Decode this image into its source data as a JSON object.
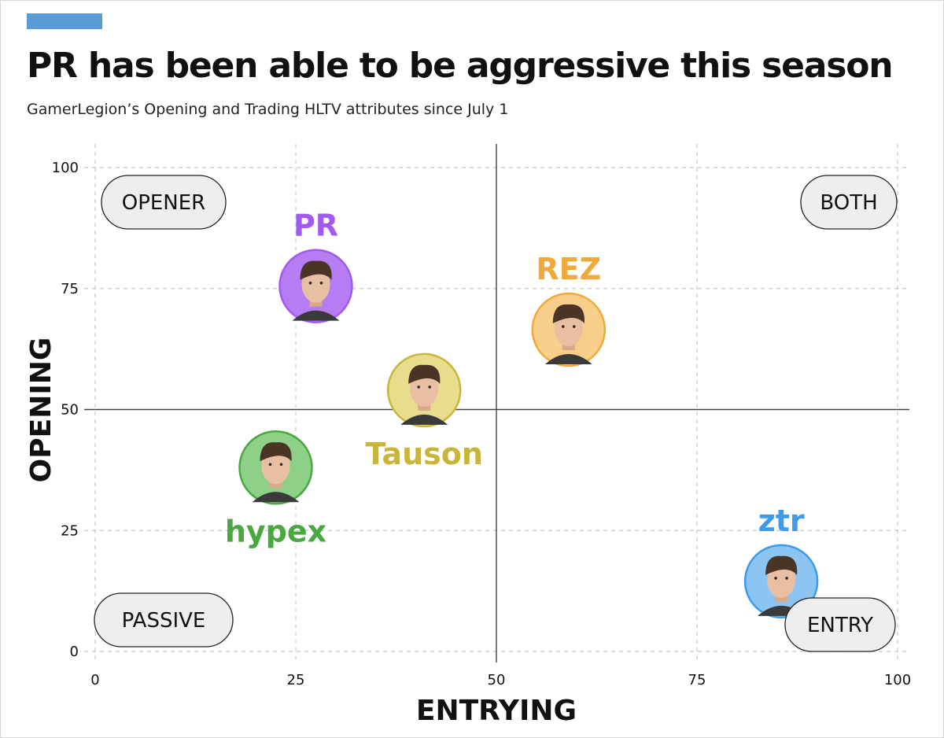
{
  "header": {
    "title": "PR has been able to be aggressive this season",
    "subtitle": "GamerLegion’s Opening and Trading HLTV attributes since July 1"
  },
  "colors": {
    "accent": "#5b9bd5",
    "grid": "#c8c8c8",
    "midline": "#444444"
  },
  "chart_data": {
    "type": "scatter",
    "title": "PR has been able to be aggressive this season",
    "subtitle": "GamerLegion’s Opening and Trading HLTV attributes since July 1",
    "xlabel": "ENTRYING",
    "ylabel": "OPENING",
    "xlim": [
      0,
      100
    ],
    "ylim": [
      0,
      100
    ],
    "xticks": [
      0,
      25,
      50,
      75,
      100
    ],
    "yticks": [
      0,
      25,
      50,
      75,
      100
    ],
    "grid": true,
    "quadrant_labels": [
      {
        "label": "OPENER",
        "position": "top-left"
      },
      {
        "label": "BOTH",
        "position": "top-right"
      },
      {
        "label": "PASSIVE",
        "position": "bottom-left"
      },
      {
        "label": "ENTRY",
        "position": "bottom-right"
      }
    ],
    "points": [
      {
        "name": "PR",
        "x": 27.5,
        "y": 75.5,
        "color": "#a259f0",
        "fill": "#b57cf4",
        "label_position": "above"
      },
      {
        "name": "REZ",
        "x": 59,
        "y": 66.5,
        "color": "#f2a93b",
        "fill": "#f8cf8a",
        "label_position": "above"
      },
      {
        "name": "Tauson",
        "x": 41,
        "y": 54,
        "color": "#c9b53a",
        "fill": "#e8dd8c",
        "label_position": "below"
      },
      {
        "name": "hypex",
        "x": 22.5,
        "y": 38,
        "color": "#4aa840",
        "fill": "#8fd088",
        "label_position": "below"
      },
      {
        "name": "ztr",
        "x": 85.5,
        "y": 14.5,
        "color": "#3d9be9",
        "fill": "#8cc4f2",
        "label_position": "above"
      }
    ]
  }
}
